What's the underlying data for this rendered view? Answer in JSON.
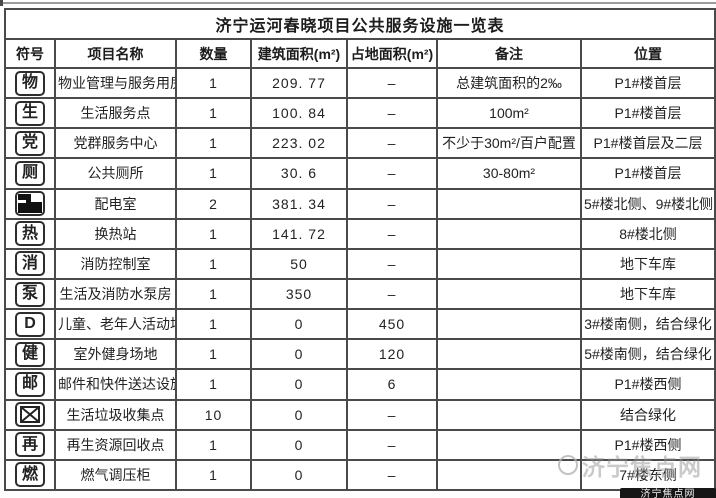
{
  "title": "济宁运河春晓项目公共服务设施一览表",
  "columns": [
    "符号",
    "项目名称",
    "数量",
    "建筑面积(m²)",
    "占地面积(m²)",
    "备注",
    "位置"
  ],
  "rows": [
    {
      "icon": "char",
      "symbol": "物",
      "name": "物业管理与服务用房",
      "qty": "1",
      "build_area": "209. 77",
      "land_area": "–",
      "remark": "总建筑面积的2‰",
      "location": "P1#楼首层"
    },
    {
      "icon": "char",
      "symbol": "生",
      "name": "生活服务点",
      "qty": "1",
      "build_area": "100. 84",
      "land_area": "–",
      "remark": "100m²",
      "location": "P1#楼首层"
    },
    {
      "icon": "char",
      "symbol": "党",
      "name": "党群服务中心",
      "qty": "1",
      "build_area": "223. 02",
      "land_area": "–",
      "remark": "不少于30m²/百户配置",
      "location": "P1#楼首层及二层"
    },
    {
      "icon": "char",
      "symbol": "厕",
      "name": "公共厕所",
      "qty": "1",
      "build_area": "30. 6",
      "land_area": "–",
      "remark": "30-80m²",
      "location": "P1#楼首层"
    },
    {
      "icon": "substation",
      "symbol": "",
      "name": "配电室",
      "qty": "2",
      "build_area": "381. 34",
      "land_area": "–",
      "remark": "",
      "location": "5#楼北侧、9#楼北侧"
    },
    {
      "icon": "char",
      "symbol": "热",
      "name": "换热站",
      "qty": "1",
      "build_area": "141. 72",
      "land_area": "–",
      "remark": "",
      "location": "8#楼北侧"
    },
    {
      "icon": "char",
      "symbol": "消",
      "name": "消防控制室",
      "qty": "1",
      "build_area": "50",
      "land_area": "–",
      "remark": "",
      "location": "地下车库"
    },
    {
      "icon": "char",
      "symbol": "泵",
      "name": "生活及消防水泵房",
      "qty": "1",
      "build_area": "350",
      "land_area": "–",
      "remark": "",
      "location": "地下车库"
    },
    {
      "icon": "char",
      "symbol": "D",
      "name": "儿童、老年人活动场地",
      "qty": "1",
      "build_area": "0",
      "land_area": "450",
      "remark": "",
      "location": "3#楼南侧，结合绿化"
    },
    {
      "icon": "char",
      "symbol": "健",
      "name": "室外健身场地",
      "qty": "1",
      "build_area": "0",
      "land_area": "120",
      "remark": "",
      "location": "5#楼南侧，结合绿化"
    },
    {
      "icon": "char",
      "symbol": "邮",
      "name": "邮件和快件送达设施",
      "qty": "1",
      "build_area": "0",
      "land_area": "6",
      "remark": "",
      "location": "P1#楼西侧"
    },
    {
      "icon": "box-x",
      "symbol": "",
      "name": "生活垃圾收集点",
      "qty": "10",
      "build_area": "0",
      "land_area": "–",
      "remark": "",
      "location": "结合绿化"
    },
    {
      "icon": "char",
      "symbol": "再",
      "name": "再生资源回收点",
      "qty": "1",
      "build_area": "0",
      "land_area": "–",
      "remark": "",
      "location": "P1#楼西侧"
    },
    {
      "icon": "char",
      "symbol": "燃",
      "name": "燃气调压柜",
      "qty": "1",
      "build_area": "0",
      "land_area": "–",
      "remark": "",
      "location": "7#楼东侧"
    }
  ],
  "watermark": {
    "text": "济宁焦点网",
    "badge": "济宁焦点网"
  }
}
